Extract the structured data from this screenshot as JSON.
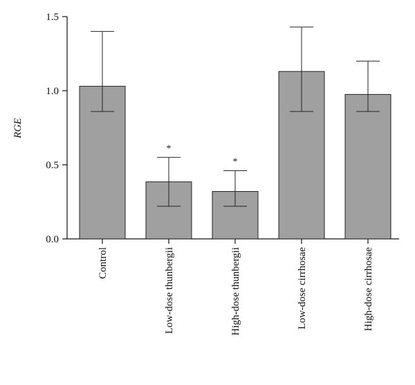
{
  "chart_data": {
    "type": "bar",
    "ylabel": "RGE",
    "ylim": [
      0,
      1.5
    ],
    "yticks": [
      "0.0",
      "0.5",
      "1.0",
      "1.5"
    ],
    "ytick_values": [
      0,
      0.5,
      1.0,
      1.5
    ],
    "categories": [
      "Control",
      "Low-dose thunbergii",
      "High-dose thunbergii",
      "Low-dose cirrhosae",
      "High-dose cirrhosae"
    ],
    "values": [
      1.03,
      0.385,
      0.32,
      1.13,
      0.975
    ],
    "error_low": [
      0.86,
      0.22,
      0.22,
      0.86,
      0.86
    ],
    "error_high": [
      1.4,
      0.55,
      0.46,
      1.43,
      1.2
    ],
    "significance": [
      "",
      "*",
      "*",
      "",
      ""
    ],
    "bar_color": "#a0a0a0",
    "bar_stroke": "#222222",
    "grid": false
  }
}
